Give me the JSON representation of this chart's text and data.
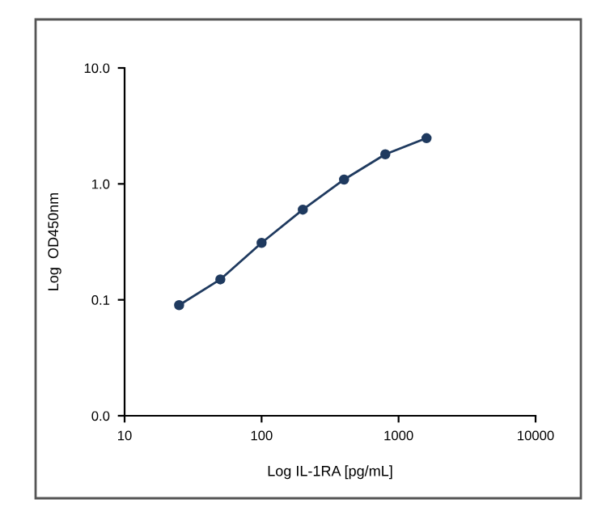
{
  "chart_data": {
    "type": "line",
    "xlabel": "Log IL-1RA [pg/mL]",
    "ylabel": "Log  OD450nm",
    "log": "xy",
    "x": [
      25,
      50,
      100,
      200,
      400,
      800,
      1600
    ],
    "series": [
      {
        "color": "#1f3a5f",
        "values": [
          0.09,
          0.15,
          0.31,
          0.6,
          1.09,
          1.8,
          2.48
        ]
      }
    ],
    "xlim": [
      10,
      10000
    ],
    "xticks": [
      10,
      100,
      1000,
      10000
    ],
    "ylim": [
      0.01,
      10
    ],
    "yticks": [
      {
        "value": 0.01,
        "label": "0.0"
      },
      {
        "value": 0.1,
        "label": "0.1"
      },
      {
        "value": 1,
        "label": "1.0"
      },
      {
        "value": 10,
        "label": "10.0"
      }
    ],
    "marker": "circle",
    "line_style": "solid",
    "grid": false,
    "legend": false
  }
}
